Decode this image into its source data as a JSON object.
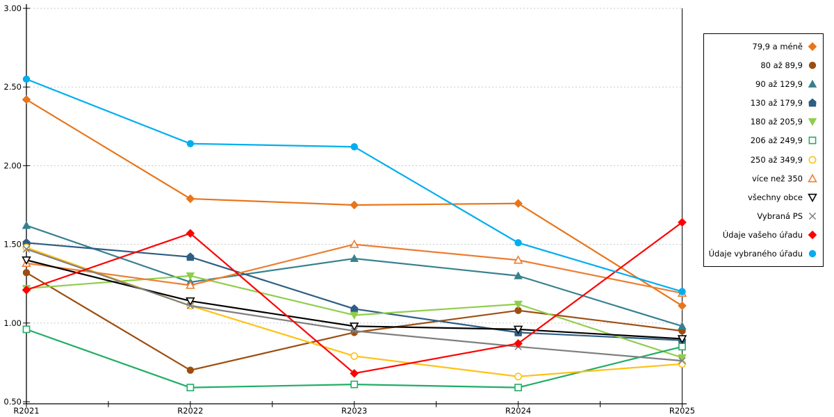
{
  "chart_data": {
    "type": "line",
    "title": "",
    "xlabel": "",
    "ylabel": "",
    "x_categories": [
      "R2021",
      "R2022",
      "R2023",
      "R2024",
      "R2025"
    ],
    "ylim": [
      0.5,
      3.0
    ],
    "ytick_labels": [
      "3.00",
      "2.50",
      "2.00",
      "1.50",
      "1.00",
      "0.50"
    ],
    "ytick_values": [
      3.0,
      2.5,
      2.0,
      1.5,
      1.0,
      0.5
    ],
    "grid": "horizontal dotted gridlines at each 0.50",
    "legend_position": "right",
    "series": [
      {
        "name": "79,9 a méně",
        "color": "#E8751A",
        "marker": "diamond",
        "fill": "filled",
        "values": [
          2.42,
          1.79,
          1.75,
          1.76,
          1.11
        ]
      },
      {
        "name": "80 až 89,9",
        "color": "#9C4E10",
        "marker": "circle",
        "fill": "filled",
        "values": [
          1.32,
          0.7,
          0.94,
          1.08,
          0.95
        ]
      },
      {
        "name": "90 až 129,9",
        "color": "#37818F",
        "marker": "triangle-up",
        "fill": "filled",
        "values": [
          1.62,
          1.26,
          1.41,
          1.3,
          0.98
        ]
      },
      {
        "name": "130 až 179,9",
        "color": "#2D5E83",
        "marker": "pentagon",
        "fill": "filled",
        "values": [
          1.51,
          1.42,
          1.09,
          0.94,
          0.89
        ]
      },
      {
        "name": "180 až 205,9",
        "color": "#8FCE4C",
        "marker": "triangle-down",
        "fill": "filled",
        "values": [
          1.22,
          1.3,
          1.05,
          1.12,
          0.78
        ]
      },
      {
        "name": "206 až 249,9",
        "color": "#1FAD66",
        "marker": "square",
        "fill": "open",
        "values": [
          0.96,
          0.59,
          0.61,
          0.59,
          0.85
        ]
      },
      {
        "name": "250 až 349,9",
        "color": "#FFC113",
        "marker": "circle",
        "fill": "open",
        "values": [
          1.48,
          1.11,
          0.79,
          0.66,
          0.74
        ]
      },
      {
        "name": "více než 350",
        "color": "#ED7D31",
        "marker": "triangle-up",
        "fill": "open",
        "values": [
          1.38,
          1.24,
          1.5,
          1.4,
          1.19
        ]
      },
      {
        "name": "všechny obce",
        "color": "#000000",
        "marker": "triangle-down",
        "fill": "open",
        "values": [
          1.4,
          1.14,
          0.98,
          0.96,
          0.9
        ]
      },
      {
        "name": "Vybraná PS",
        "color": "#7F7F7F",
        "marker": "x",
        "fill": "open",
        "values": [
          1.47,
          1.11,
          0.95,
          0.85,
          0.76
        ]
      },
      {
        "name": "Údaje vašeho úřadu",
        "color": "#FF0000",
        "marker": "diamond",
        "fill": "filled",
        "values": [
          1.21,
          1.57,
          0.68,
          0.87,
          1.64
        ]
      },
      {
        "name": "Údaje vybraného úřadu",
        "color": "#00AEEF",
        "marker": "circle",
        "fill": "filled",
        "values": [
          2.55,
          2.14,
          2.12,
          1.51,
          1.2
        ]
      }
    ]
  },
  "colors": {
    "grid": "#C8C8C8",
    "axis": "#000000",
    "background": "#FFFFFF"
  }
}
